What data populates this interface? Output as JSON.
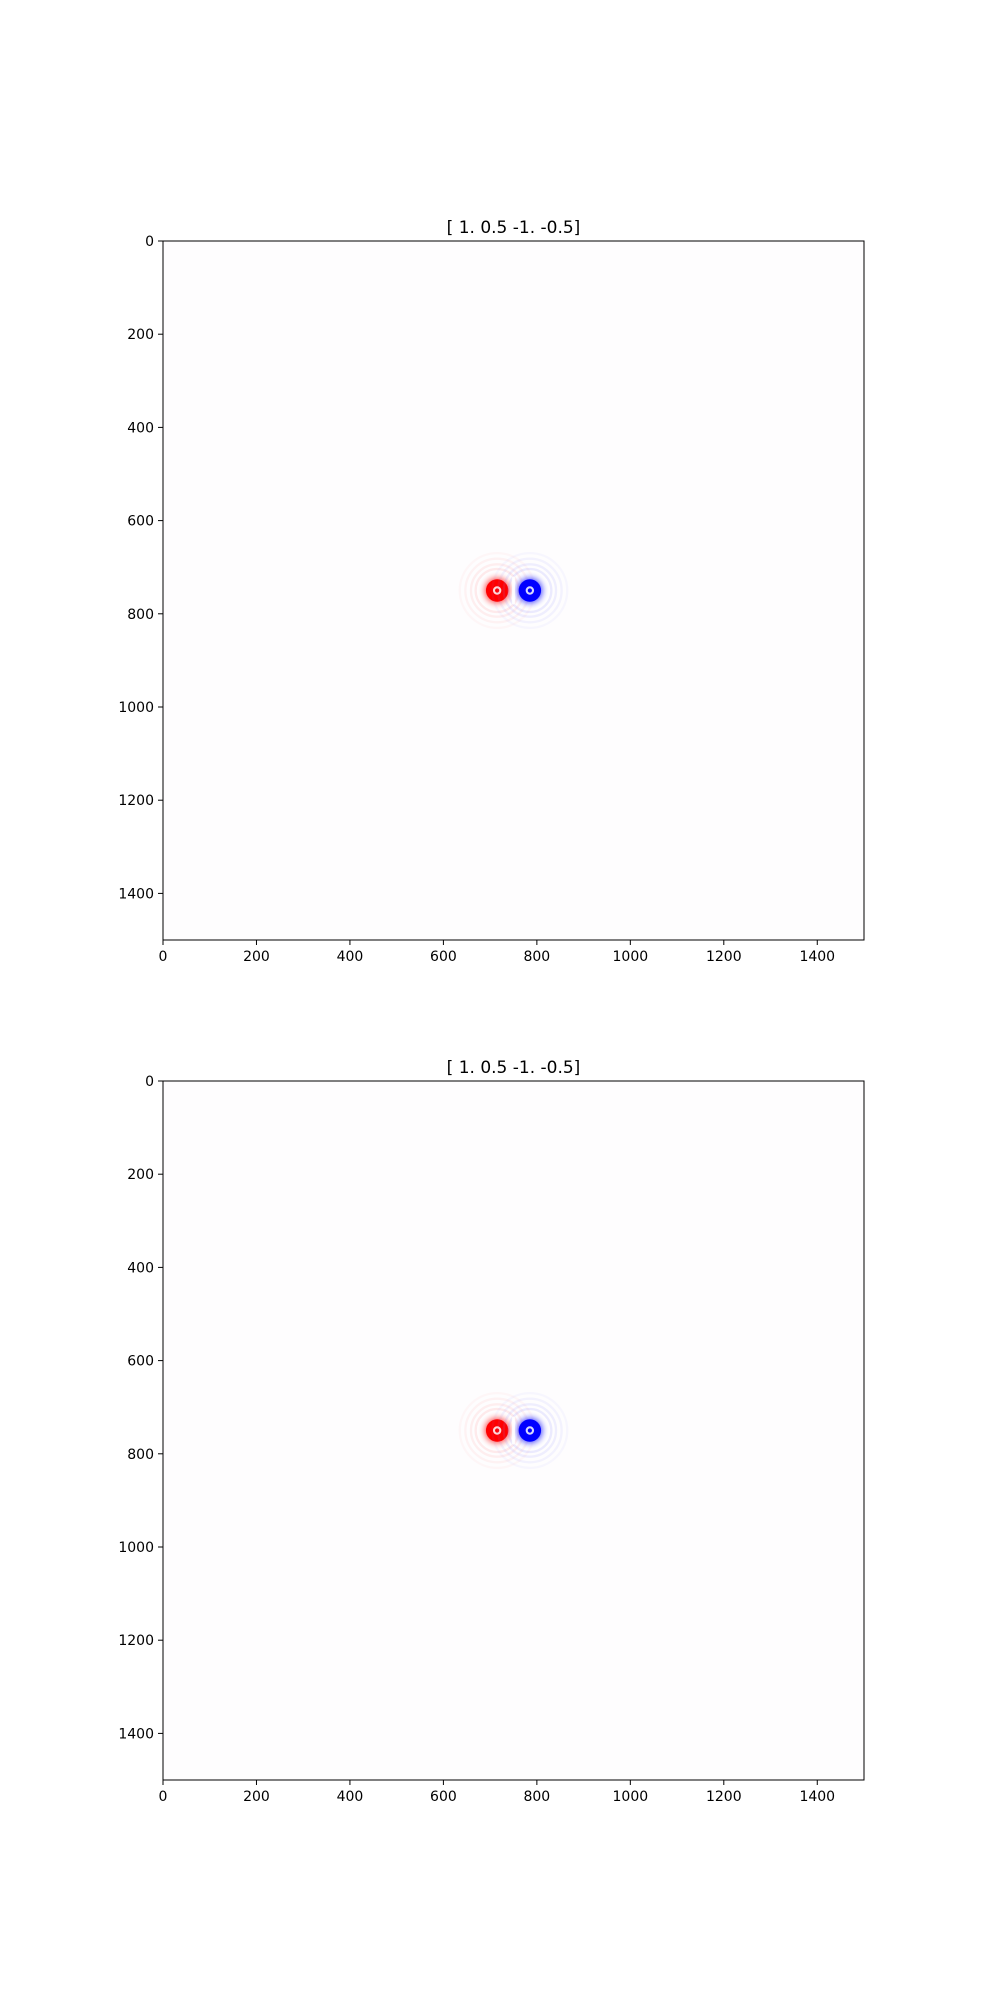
{
  "colors": {
    "background": "#ffffff",
    "axis": "#000000",
    "positive_lobe": "#e00000",
    "negative_lobe": "#0000e0",
    "colormap": "bwr"
  },
  "chart_data": [
    {
      "type": "heatmap",
      "title": "[ 1.   0.5 -1.  -0.5]",
      "xlabel": "",
      "ylabel": "",
      "xlim": [
        0,
        1500
      ],
      "ylim": [
        1500,
        0
      ],
      "xticks": [
        0,
        200,
        400,
        600,
        800,
        1000,
        1200,
        1400
      ],
      "yticks": [
        0,
        200,
        400,
        600,
        800,
        1000,
        1200,
        1400
      ],
      "grid": false,
      "features": [
        {
          "name": "positive lobe",
          "sign": "positive",
          "x": 715,
          "y": 750
        },
        {
          "name": "negative lobe",
          "sign": "negative",
          "x": 785,
          "y": 750
        }
      ]
    },
    {
      "type": "heatmap",
      "title": "[ 1.   0.5 -1.  -0.5]",
      "xlabel": "",
      "ylabel": "",
      "xlim": [
        0,
        1500
      ],
      "ylim": [
        1500,
        0
      ],
      "xticks": [
        0,
        200,
        400,
        600,
        800,
        1000,
        1200,
        1400
      ],
      "yticks": [
        0,
        200,
        400,
        600,
        800,
        1000,
        1200,
        1400
      ],
      "grid": false,
      "features": [
        {
          "name": "positive lobe",
          "sign": "positive",
          "x": 715,
          "y": 750
        },
        {
          "name": "negative lobe",
          "sign": "negative",
          "x": 785,
          "y": 750
        }
      ]
    }
  ]
}
